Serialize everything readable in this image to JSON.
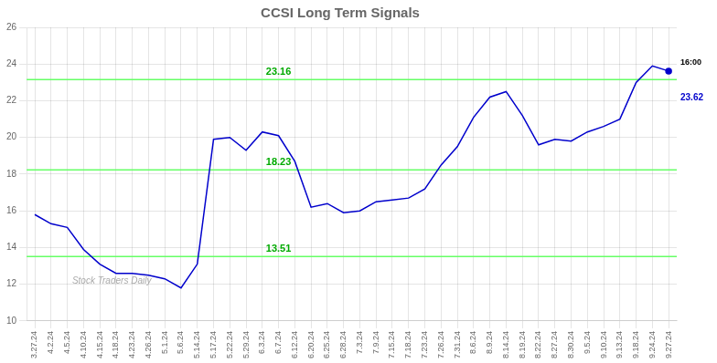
{
  "chart_data": {
    "type": "line",
    "title": "CCSI Long Term Signals",
    "categories": [
      "3.27.24",
      "4.2.24",
      "4.5.24",
      "4.10.24",
      "4.15.24",
      "4.18.24",
      "4.23.24",
      "4.26.24",
      "5.1.24",
      "5.6.24",
      "5.14.24",
      "5.17.24",
      "5.22.24",
      "5.29.24",
      "6.3.24",
      "6.7.24",
      "6.12.24",
      "6.20.24",
      "6.25.24",
      "6.28.24",
      "7.3.24",
      "7.9.24",
      "7.15.24",
      "7.18.24",
      "7.23.24",
      "7.26.24",
      "7.31.24",
      "8.6.24",
      "8.9.24",
      "8.14.24",
      "8.19.24",
      "8.22.24",
      "8.27.24",
      "8.30.24",
      "9.5.24",
      "9.10.24",
      "9.13.24",
      "9.18.24",
      "9.24.24",
      "9.27.24"
    ],
    "values": [
      15.8,
      15.3,
      15.1,
      13.9,
      13.1,
      12.6,
      12.6,
      12.5,
      12.3,
      11.8,
      13.1,
      19.9,
      20.0,
      19.3,
      20.3,
      20.1,
      18.7,
      16.2,
      16.4,
      15.9,
      16.0,
      16.5,
      16.6,
      16.7,
      17.2,
      18.5,
      19.5,
      21.1,
      22.2,
      22.5,
      21.2,
      19.6,
      19.9,
      19.8,
      20.3,
      20.6,
      21.0,
      23.0,
      23.9,
      23.62
    ],
    "color": "#0000cc",
    "ylim": [
      10,
      26
    ],
    "yticks": [
      10,
      12,
      14,
      16,
      18,
      20,
      22,
      24,
      26
    ],
    "grid": true,
    "hlines": [
      {
        "value": 13.51,
        "label": "13.51",
        "color": "#66ff66"
      },
      {
        "value": 18.23,
        "label": "18.23",
        "color": "#66ff66"
      },
      {
        "value": 23.16,
        "label": "23.16",
        "color": "#66ff66"
      }
    ],
    "annotations": [
      "Stock Traders Daily",
      "16:00",
      "23.62"
    ]
  }
}
